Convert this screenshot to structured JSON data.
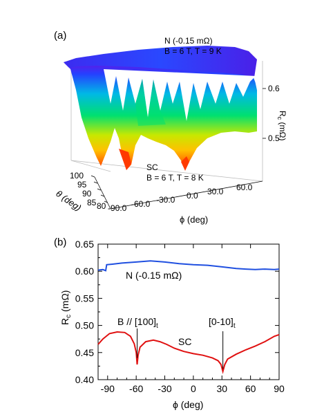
{
  "chart_data": [
    {
      "panel_label": "(a)",
      "type": "surface",
      "annotations": {
        "normal": {
          "name": "N (-0.15 mΩ)",
          "condition": "B = 6 T, T = 9 K"
        },
        "superconducting": {
          "name": "SC",
          "condition": "B = 6 T, T = 8 K"
        }
      },
      "x_axis": {
        "label": "ϕ (deg)",
        "ticks": [
          "-90.0",
          "-60.0",
          "-30.0",
          "0.0",
          "30.0",
          "60.0"
        ]
      },
      "y_axis": {
        "label": "θ (deg)",
        "ticks": [
          "100",
          "95",
          "90",
          "85",
          "80"
        ]
      },
      "z_axis": {
        "label": "Rc (mΩ)",
        "label_main": "R",
        "label_sub": "c",
        "label_rest": " (mΩ)",
        "ticks": [
          "0.6",
          "0.5"
        ]
      },
      "colors": [
        "#ff3b00",
        "#ffd000",
        "#00e070",
        "#00c0e0",
        "#2040ff",
        "#7a10e0"
      ]
    },
    {
      "panel_label": "(b)",
      "type": "line",
      "xlabel": "ϕ (deg)",
      "ylabel": "Rc (mΩ)",
      "ylabel_main": "R",
      "ylabel_sub": "c",
      "ylabel_rest": " (mΩ)",
      "xlim": [
        -100,
        90
      ],
      "ylim": [
        0.4,
        0.65
      ],
      "xticks": [
        -90,
        -60,
        -30,
        0,
        30,
        60,
        90
      ],
      "yticks": [
        0.4,
        0.45,
        0.5,
        0.55,
        0.6,
        0.65
      ],
      "ytick_labels": [
        "0.40",
        "0.45",
        "0.50",
        "0.55",
        "0.60",
        "0.65"
      ],
      "series": [
        {
          "name": "N (-0.15 mΩ)",
          "color": "#1f4fe0",
          "points": [
            [
              -100,
              0.602
            ],
            [
              -95,
              0.603
            ],
            [
              -92,
              0.601
            ],
            [
              -91,
              0.612
            ],
            [
              -85,
              0.613
            ],
            [
              -75,
              0.615
            ],
            [
              -60,
              0.617
            ],
            [
              -45,
              0.619
            ],
            [
              -30,
              0.617
            ],
            [
              -15,
              0.614
            ],
            [
              0,
              0.612
            ],
            [
              15,
              0.611
            ],
            [
              30,
              0.608
            ],
            [
              45,
              0.605
            ],
            [
              55,
              0.604
            ],
            [
              65,
              0.603
            ],
            [
              75,
              0.604
            ],
            [
              85,
              0.603
            ],
            [
              90,
              0.604
            ]
          ]
        },
        {
          "name": "SC",
          "color": "#e01010",
          "points": [
            [
              -100,
              0.465
            ],
            [
              -95,
              0.475
            ],
            [
              -88,
              0.485
            ],
            [
              -80,
              0.488
            ],
            [
              -72,
              0.487
            ],
            [
              -66,
              0.48
            ],
            [
              -62,
              0.466
            ],
            [
              -60,
              0.45
            ],
            [
              -59,
              0.428
            ],
            [
              -58,
              0.445
            ],
            [
              -56,
              0.46
            ],
            [
              -50,
              0.47
            ],
            [
              -42,
              0.473
            ],
            [
              -35,
              0.47
            ],
            [
              -28,
              0.465
            ],
            [
              -20,
              0.458
            ],
            [
              -10,
              0.452
            ],
            [
              0,
              0.448
            ],
            [
              10,
              0.445
            ],
            [
              20,
              0.44
            ],
            [
              26,
              0.435
            ],
            [
              29,
              0.428
            ],
            [
              31,
              0.415
            ],
            [
              33,
              0.428
            ],
            [
              36,
              0.438
            ],
            [
              45,
              0.447
            ],
            [
              55,
              0.455
            ],
            [
              65,
              0.462
            ],
            [
              75,
              0.47
            ],
            [
              85,
              0.48
            ],
            [
              90,
              0.483
            ]
          ]
        }
      ],
      "annotations": [
        {
          "text": "N (-0.15 mΩ)",
          "ref": "series0"
        },
        {
          "text": "SC",
          "ref": "series1"
        },
        {
          "text_main": "B // [100]",
          "text_sub": "t",
          "x": -59
        },
        {
          "text_main": "[0-10]",
          "text_sub": "t",
          "x": 31
        }
      ]
    }
  ]
}
